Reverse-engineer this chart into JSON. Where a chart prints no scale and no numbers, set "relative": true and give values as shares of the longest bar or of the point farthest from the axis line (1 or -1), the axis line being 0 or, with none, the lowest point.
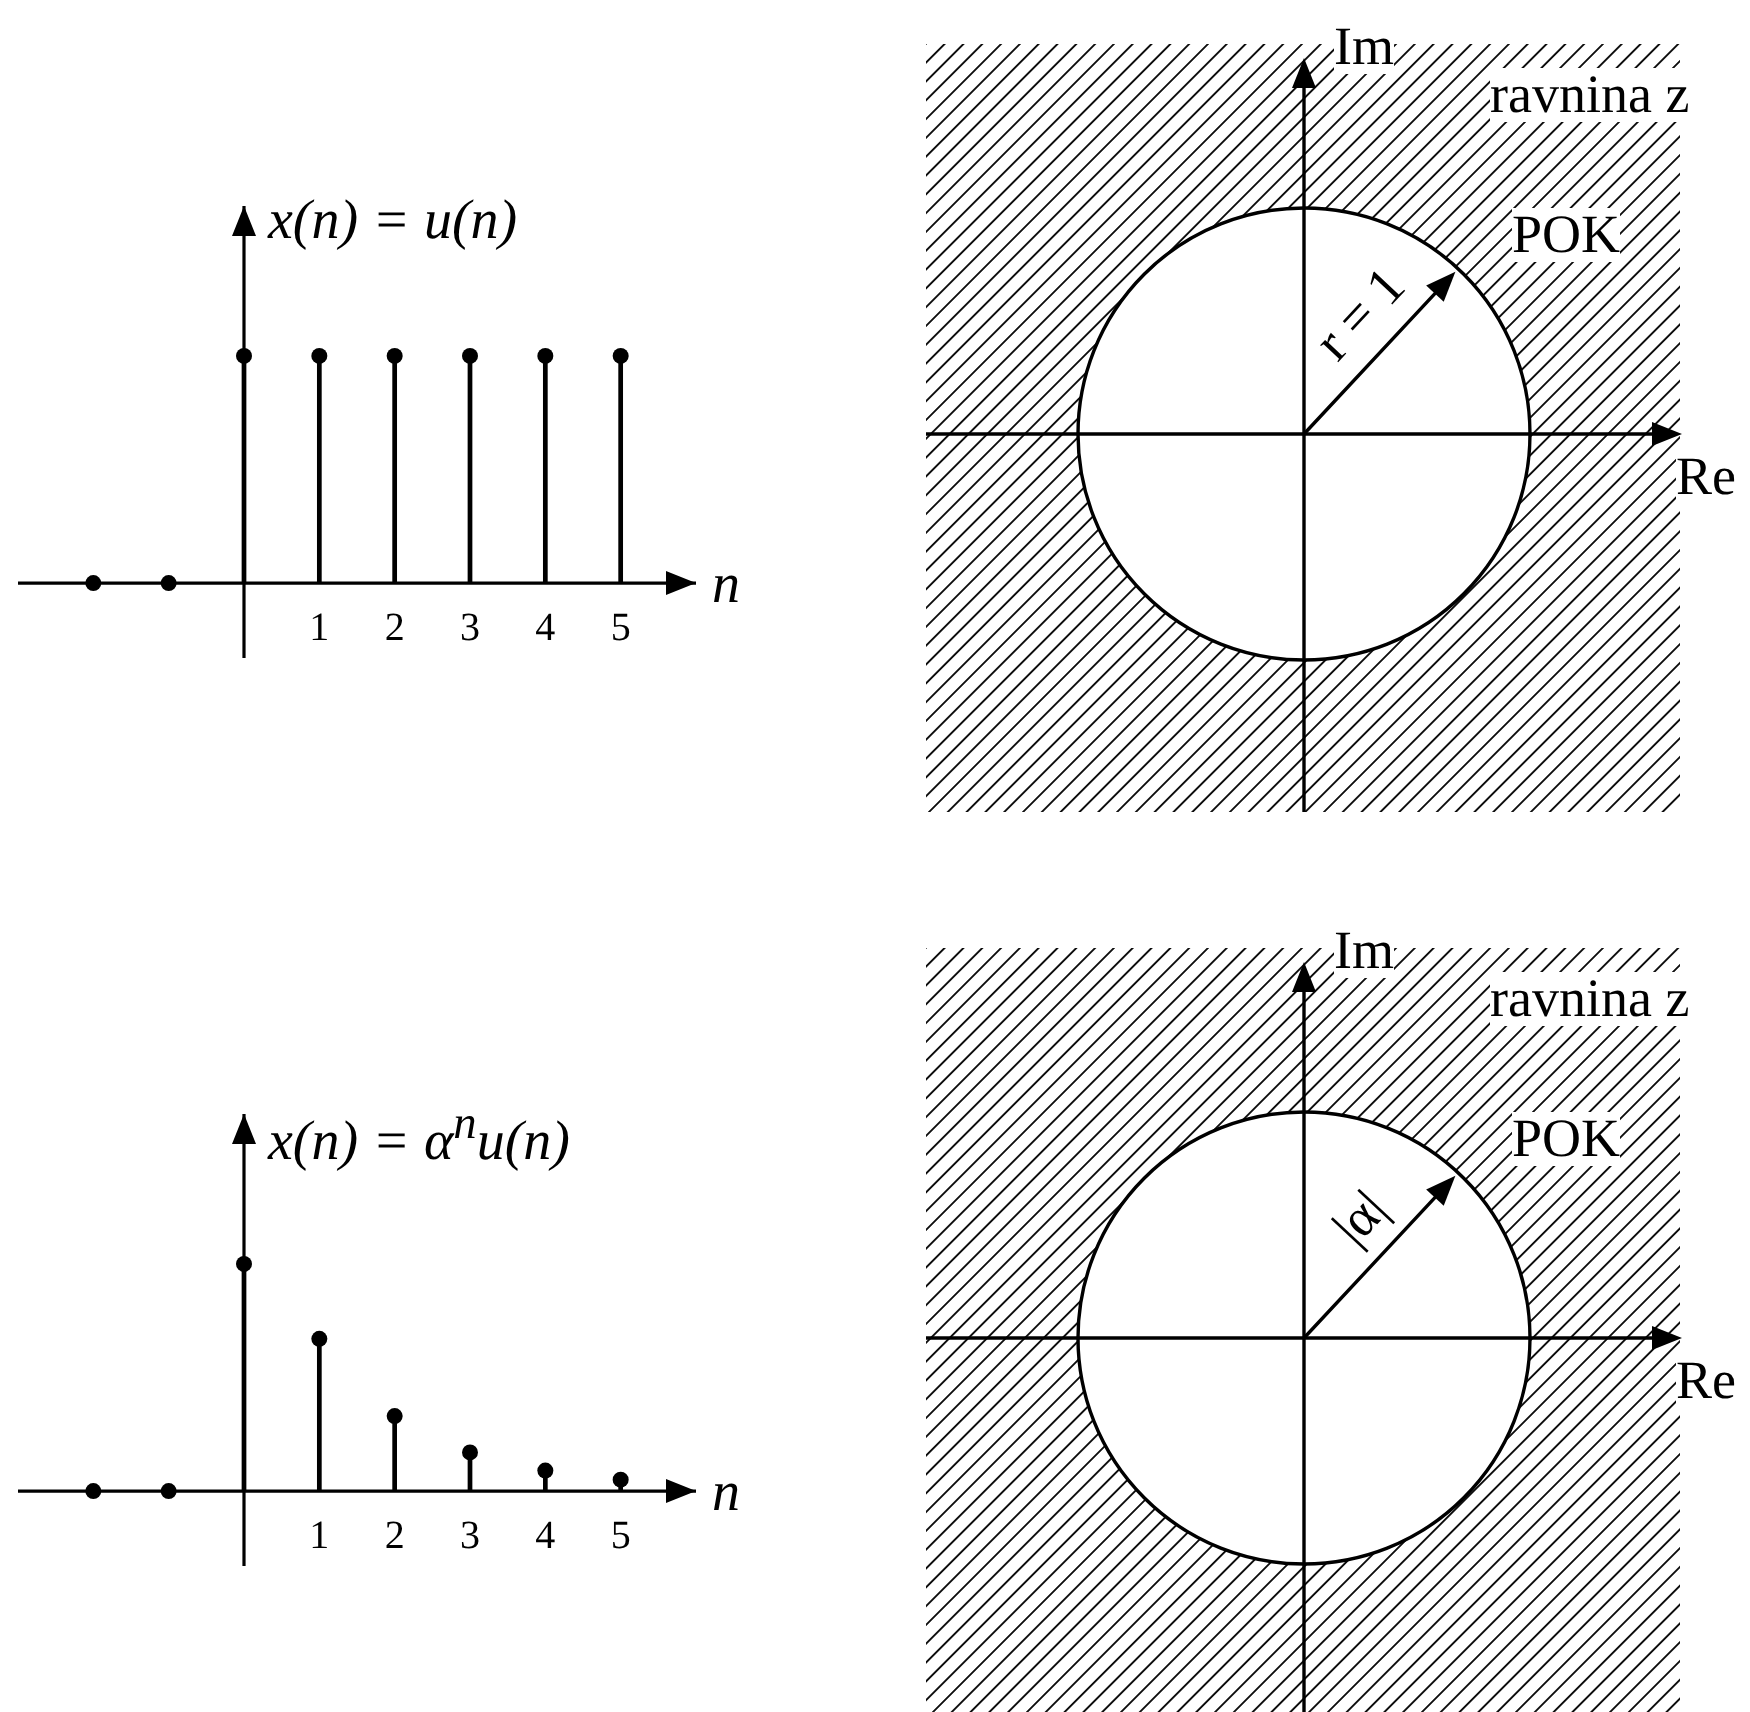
{
  "chart_data": [
    {
      "type": "lollipop",
      "ylabel": "x(n) = u(n)",
      "xlabel": "n",
      "x": [
        -2,
        -1,
        0,
        1,
        2,
        3,
        4,
        5
      ],
      "values": [
        0,
        0,
        1,
        1,
        1,
        1,
        1,
        1
      ],
      "relative": true,
      "xlim": [
        -3,
        6
      ],
      "xticks": [
        1,
        2,
        3,
        4,
        5
      ],
      "color": "#000000",
      "marker": "circle"
    },
    {
      "type": "other",
      "xlabel": "Re",
      "ylabel": "Im",
      "annotations": [
        "ravnina z",
        "POK",
        "r = 1"
      ]
    },
    {
      "type": "lollipop",
      "ylabel": "x(n) = α$^{n}$u(n)",
      "xlabel": "n",
      "x": [
        -2,
        -1,
        0,
        1,
        2,
        3,
        4,
        5
      ],
      "values": [
        0,
        0,
        1,
        0.67,
        0.33,
        0.17,
        0.09,
        0.05
      ],
      "relative": true,
      "xlim": [
        -3,
        6
      ],
      "xticks": [
        1,
        2,
        3,
        4,
        5
      ],
      "color": "#000000",
      "marker": "circle"
    },
    {
      "type": "other",
      "xlabel": "Re",
      "ylabel": "Im",
      "annotations": [
        "ravnina z",
        "POK",
        "|α|"
      ]
    }
  ]
}
